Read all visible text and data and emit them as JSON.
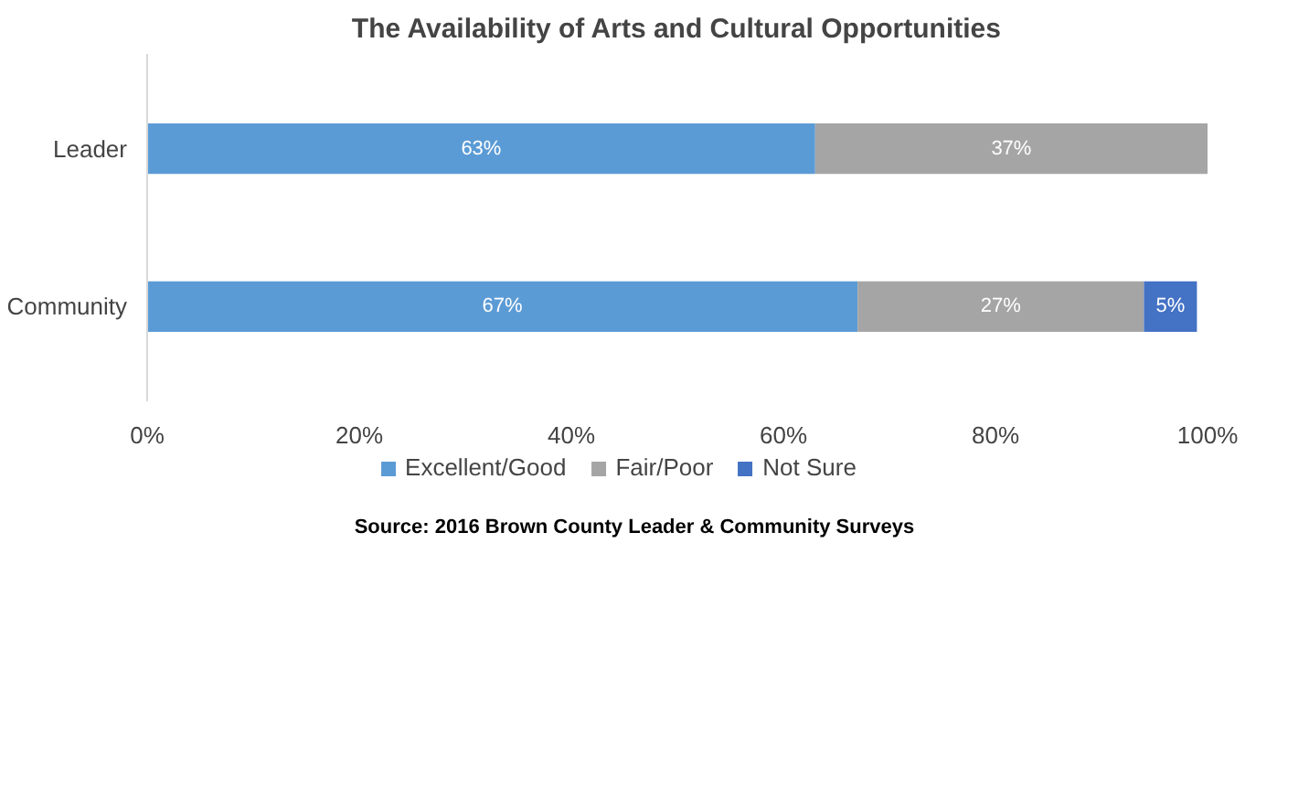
{
  "chart_data": {
    "type": "bar",
    "orientation": "horizontal",
    "stacked": true,
    "title": "The Availability of Arts and Cultural Opportunities",
    "categories": [
      "Leader",
      "Community"
    ],
    "series": [
      {
        "name": "Excellent/Good",
        "color": "#5b9bd5",
        "values": [
          63,
          67
        ],
        "value_labels": [
          "63%",
          "67%"
        ]
      },
      {
        "name": "Fair/Poor",
        "color": "#a5a5a5",
        "values": [
          37,
          27
        ],
        "value_labels": [
          "37%",
          "27%"
        ]
      },
      {
        "name": "Not Sure",
        "color": "#4472c4",
        "values": [
          null,
          5
        ],
        "value_labels": [
          null,
          "5%"
        ]
      }
    ],
    "xlim": [
      0,
      100
    ],
    "xticks": [
      {
        "value": 0,
        "label": "0%"
      },
      {
        "value": 20,
        "label": "20%"
      },
      {
        "value": 40,
        "label": "40%"
      },
      {
        "value": 60,
        "label": "60%"
      },
      {
        "value": 80,
        "label": "80%"
      },
      {
        "value": 100,
        "label": "100%"
      }
    ],
    "data_labels": true,
    "grid": false,
    "legend": "bottom",
    "annotations": [
      "Source:  2016 Brown County Leader & Community Surveys"
    ]
  }
}
